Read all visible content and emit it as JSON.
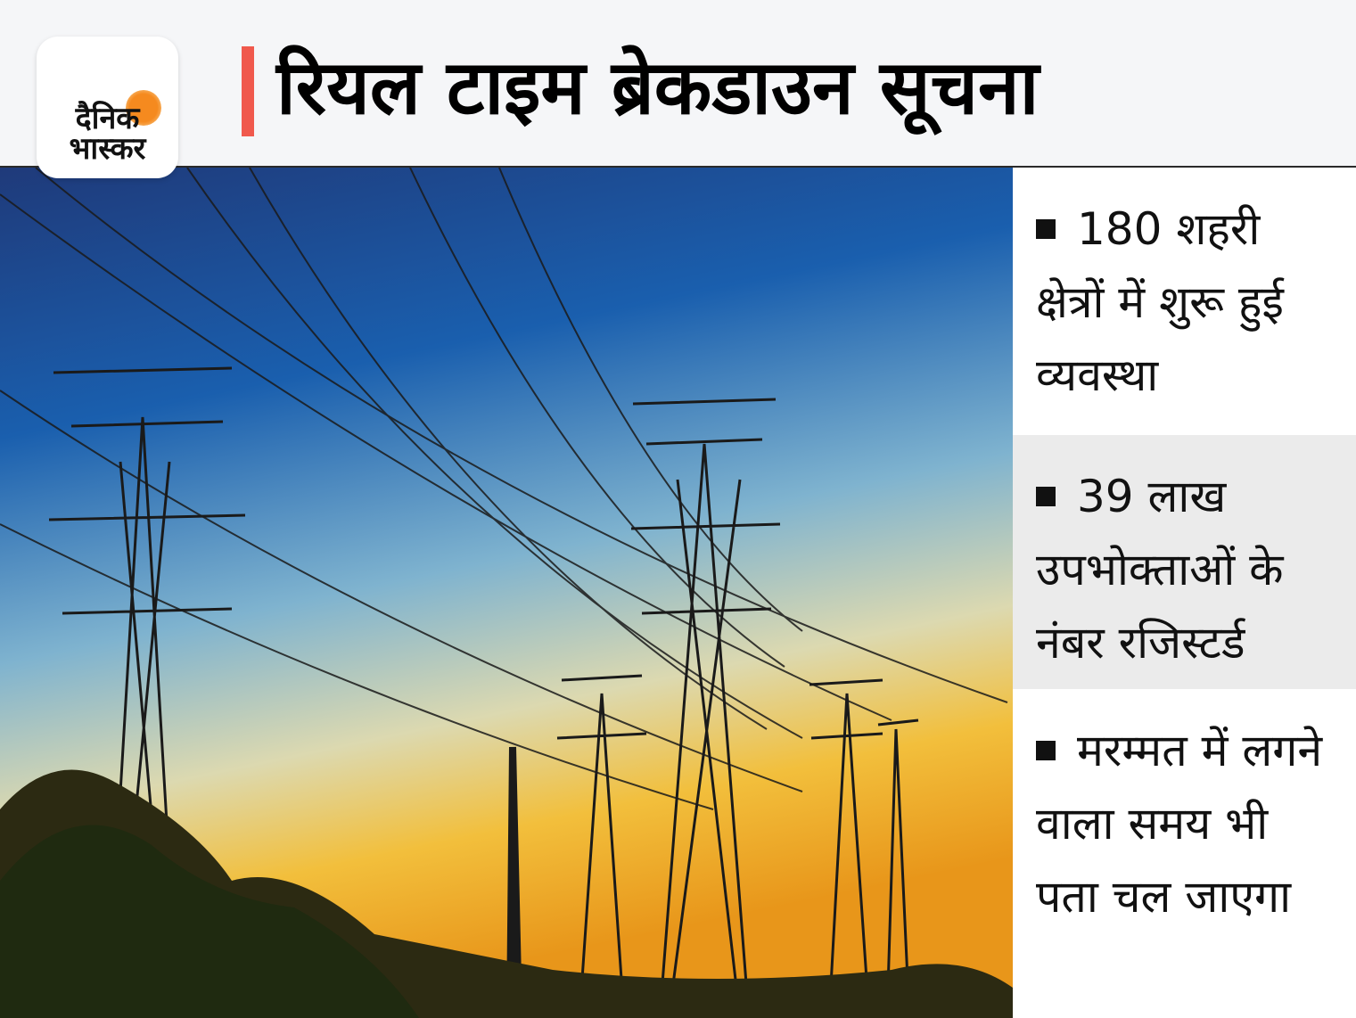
{
  "brand": {
    "logo_text_line1": "दैनिक",
    "logo_text_line2": "भास्कर",
    "accent_color": "#f0594d",
    "sun_color": "#f58a1f"
  },
  "header": {
    "title": "रियल टाइम ब्रेकडाउन सूचना"
  },
  "photo": {
    "subject": "power-transmission-towers-at-sunset"
  },
  "facts": [
    {
      "text": "180 शहरी क्षेत्रों में शुरू हुई व्यवस्था"
    },
    {
      "text": "39 लाख उपभोक्ताओं के नंबर रजिस्टर्ड"
    },
    {
      "text": "मरम्मत में लगने वाला समय भी पता चल जाएगा"
    }
  ]
}
